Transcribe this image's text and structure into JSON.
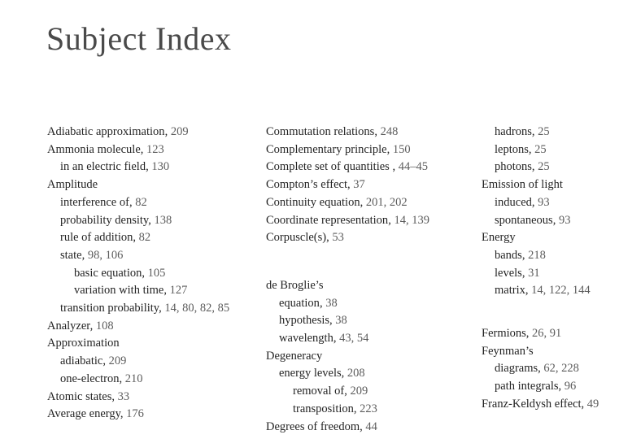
{
  "title": "Subject Index",
  "colors": {
    "background": "#ffffff",
    "title_text": "#4a4a4a",
    "entry_text": "#242424",
    "page_numbers": "#5c5c5c"
  },
  "index": {
    "columns": [
      {
        "entries": [
          {
            "text": "Adiabatic approximation",
            "pages": "209",
            "indent": 0
          },
          {
            "text": "Ammonia molecule",
            "pages": "123",
            "indent": 0
          },
          {
            "text": "in an electric field",
            "pages": "130",
            "indent": 1
          },
          {
            "text": "Amplitude",
            "pages": "",
            "indent": 0
          },
          {
            "text": "interference of",
            "pages": "82",
            "indent": 1
          },
          {
            "text": "probability density",
            "pages": "138",
            "indent": 1
          },
          {
            "text": "rule of addition",
            "pages": "82",
            "indent": 1
          },
          {
            "text": "state",
            "pages": "98, 106",
            "indent": 1
          },
          {
            "text": "basic equation",
            "pages": "105",
            "indent": 2
          },
          {
            "text": "variation with time",
            "pages": "127",
            "indent": 2
          },
          {
            "text": "transition probability",
            "pages": "14, 80, 82, 85",
            "indent": 1
          },
          {
            "text": "Analyzer",
            "pages": "108",
            "indent": 0
          },
          {
            "text": "Approximation",
            "pages": "",
            "indent": 0
          },
          {
            "text": "adiabatic",
            "pages": "209",
            "indent": 1
          },
          {
            "text": "one-electron",
            "pages": "210",
            "indent": 1
          },
          {
            "text": "Atomic states",
            "pages": "33",
            "indent": 0
          },
          {
            "text": "Average energy",
            "pages": "176",
            "indent": 0
          }
        ]
      },
      {
        "entries": [
          {
            "text": "Commutation relations",
            "pages": "248",
            "indent": 0
          },
          {
            "text": "Complementary principle",
            "pages": "150",
            "indent": 0
          },
          {
            "text": "Complete set of quantities ",
            "pages": "44–45",
            "indent": 0
          },
          {
            "text": "Compton’s effect",
            "pages": "37",
            "indent": 0
          },
          {
            "text": "Continuity equation",
            "pages": "201, 202",
            "indent": 0
          },
          {
            "text": "Coordinate representation",
            "pages": "14, 139",
            "indent": 0
          },
          {
            "text": "Corpuscle(s)",
            "pages": "53",
            "indent": 0
          },
          {
            "text": "de Broglie’s",
            "pages": "",
            "indent": 0,
            "gap_before": true
          },
          {
            "text": "equation",
            "pages": "38",
            "indent": 1
          },
          {
            "text": "hypothesis",
            "pages": "38",
            "indent": 1
          },
          {
            "text": "wavelength",
            "pages": "43, 54",
            "indent": 1
          },
          {
            "text": "Degeneracy",
            "pages": "",
            "indent": 0
          },
          {
            "text": "energy levels",
            "pages": "208",
            "indent": 1
          },
          {
            "text": "removal of",
            "pages": "209",
            "indent": 2
          },
          {
            "text": "transposition",
            "pages": "223",
            "indent": 2
          },
          {
            "text": "Degrees of freedom",
            "pages": "44",
            "indent": 0
          }
        ]
      },
      {
        "entries": [
          {
            "text": "hadrons",
            "pages": "25",
            "indent": 1
          },
          {
            "text": "leptons",
            "pages": "25",
            "indent": 1
          },
          {
            "text": "photons",
            "pages": "25",
            "indent": 1
          },
          {
            "text": "Emission of light",
            "pages": "",
            "indent": 0
          },
          {
            "text": "induced",
            "pages": "93",
            "indent": 1
          },
          {
            "text": "spontaneous",
            "pages": "93",
            "indent": 1
          },
          {
            "text": "Energy",
            "pages": "",
            "indent": 0
          },
          {
            "text": "bands",
            "pages": "218",
            "indent": 1
          },
          {
            "text": "levels",
            "pages": "31",
            "indent": 1
          },
          {
            "text": "matrix",
            "pages": "14, 122, 144",
            "indent": 1
          },
          {
            "text": "Fermions",
            "pages": "26, 91",
            "indent": 0,
            "gap_before": true
          },
          {
            "text": "Feynman’s",
            "pages": "",
            "indent": 0
          },
          {
            "text": "diagrams",
            "pages": "62, 228",
            "indent": 1
          },
          {
            "text": "path integrals",
            "pages": "96",
            "indent": 1
          },
          {
            "text": "Franz-Keldysh effect",
            "pages": "49",
            "indent": 0
          }
        ]
      }
    ]
  }
}
